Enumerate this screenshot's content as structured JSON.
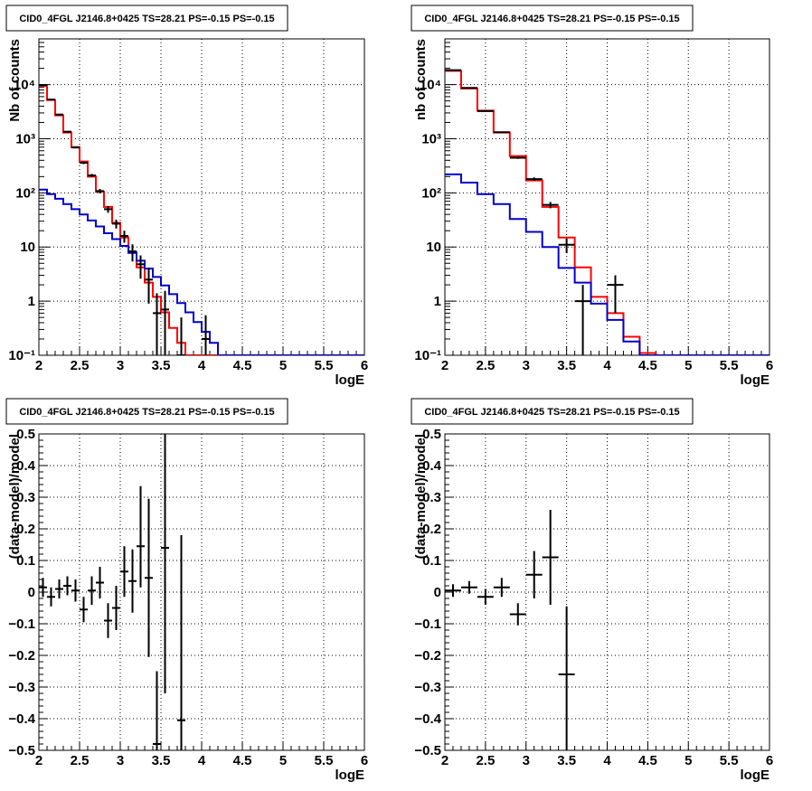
{
  "chart_data": [
    {
      "type": "histogram",
      "title": "CID0_4FGL J2146.8+0425 TS=28.21 PS=-0.15 PS=-0.15",
      "xlabel": "logE",
      "ylabel": "Nb of counts",
      "xlim": [
        2,
        6
      ],
      "ylim": [
        0.1,
        70000
      ],
      "yscale": "log",
      "grid": true,
      "xticks": [
        2,
        2.5,
        3,
        3.5,
        4,
        4.5,
        5,
        5.5,
        6
      ],
      "xtick_labels": [
        "2",
        "2.5",
        "3",
        "3.5",
        "4",
        "4.5",
        "5",
        "5.5",
        "6"
      ],
      "yticks": [
        0.1,
        1,
        10,
        100,
        1000,
        10000
      ],
      "ytick_labels": [
        "10⁻¹",
        "1",
        "10",
        "10²",
        "10³",
        "10⁴"
      ],
      "bin_edges": [
        2.0,
        2.1,
        2.2,
        2.3,
        2.4,
        2.5,
        2.6,
        2.7,
        2.8,
        2.9,
        3.0,
        3.1,
        3.2,
        3.3,
        3.4,
        3.5,
        3.6,
        3.7,
        3.8,
        3.9,
        4.0,
        4.1,
        4.2,
        4.3,
        4.4,
        4.5,
        4.6,
        4.7,
        4.8,
        4.9,
        5.0,
        5.1,
        5.2,
        5.3,
        5.4,
        5.5,
        5.6,
        5.7,
        5.8,
        5.9,
        6.0
      ],
      "series": [
        {
          "color": "#ff0000",
          "values": [
            9500,
            5200,
            2700,
            1300,
            700,
            380,
            200,
            105,
            55,
            28,
            15,
            8,
            4.2,
            2.2,
            1.2,
            0.62,
            0.32,
            0.17,
            0.1,
            0.1,
            0.1,
            0.1,
            0.1,
            0.1,
            0.1,
            0.1,
            0.1,
            0.1,
            0.1,
            0.1,
            0.1,
            0.1,
            0.1,
            0.1,
            0.1,
            0.1,
            0.1,
            0.1,
            0.1,
            0.1
          ]
        },
        {
          "color": "#0000cc",
          "values": [
            115,
            95,
            78,
            62,
            50,
            40,
            31,
            24,
            18,
            14,
            10.5,
            7.8,
            5.6,
            4.0,
            2.8,
            1.95,
            1.35,
            0.92,
            0.62,
            0.41,
            0.27,
            0.17,
            0.1,
            0.1,
            0.1,
            0.1,
            0.1,
            0.1,
            0.1,
            0.1,
            0.1,
            0.1,
            0.1,
            0.1,
            0.1,
            0.1,
            0.1,
            0.1,
            0.1,
            0.1
          ]
        }
      ],
      "points": [
        {
          "x": 2.05,
          "y": 9800,
          "yerr": [
            99,
            99
          ],
          "xerr": 0.05
        },
        {
          "x": 2.15,
          "y": 5300,
          "yerr": [
            73,
            73
          ],
          "xerr": 0.05
        },
        {
          "x": 2.25,
          "y": 2800,
          "yerr": [
            53,
            53
          ],
          "xerr": 0.05
        },
        {
          "x": 2.35,
          "y": 1350,
          "yerr": [
            37,
            37
          ],
          "xerr": 0.05
        },
        {
          "x": 2.45,
          "y": 690,
          "yerr": [
            26,
            26
          ],
          "xerr": 0.05
        },
        {
          "x": 2.55,
          "y": 360,
          "yerr": [
            19,
            19
          ],
          "xerr": 0.05
        },
        {
          "x": 2.65,
          "y": 210,
          "yerr": [
            14,
            14
          ],
          "xerr": 0.05
        },
        {
          "x": 2.75,
          "y": 108,
          "yerr": [
            10,
            10
          ],
          "xerr": 0.05
        },
        {
          "x": 2.85,
          "y": 50,
          "yerr": [
            7,
            7
          ],
          "xerr": 0.05
        },
        {
          "x": 2.95,
          "y": 27,
          "yerr": [
            5,
            5
          ],
          "xerr": 0.05
        },
        {
          "x": 3.05,
          "y": 16,
          "yerr": [
            4,
            4
          ],
          "xerr": 0.05
        },
        {
          "x": 3.15,
          "y": 8.3,
          "yerr": [
            2.9,
            2.9
          ],
          "xerr": 0.05
        },
        {
          "x": 3.25,
          "y": 4.8,
          "yerr": [
            2.2,
            2.2
          ],
          "xerr": 0.05
        },
        {
          "x": 3.35,
          "y": 2.5,
          "yerr": [
            1.6,
            1.6
          ],
          "xerr": 0.05
        },
        {
          "x": 3.45,
          "y": 0.6,
          "yerr": [
            0.6,
            0.8
          ],
          "xerr": 0.05
        },
        {
          "x": 3.55,
          "y": 0.7,
          "yerr": [
            0.7,
            0.85
          ],
          "xerr": 0.05
        },
        {
          "x": 3.75,
          "y": 0.1,
          "yerr": [
            0,
            0.4
          ],
          "xerr": 0.05
        },
        {
          "x": 4.05,
          "y": 0.2,
          "yerr": [
            0.1,
            0.35
          ],
          "xerr": 0.05
        }
      ]
    },
    {
      "type": "histogram",
      "title": "CID0_4FGL J2146.8+0425 TS=28.21 PS=-0.15 PS=-0.15",
      "xlabel": "logE",
      "ylabel": "nb of counts",
      "xlim": [
        2,
        6
      ],
      "ylim": [
        0.1,
        70000
      ],
      "yscale": "log",
      "grid": true,
      "xticks": [
        2,
        2.5,
        3,
        3.5,
        4,
        4.5,
        5,
        5.5,
        6
      ],
      "xtick_labels": [
        "2",
        "2.5",
        "3",
        "3.5",
        "4",
        "4.5",
        "5",
        "5.5",
        "6"
      ],
      "yticks": [
        0.1,
        1,
        10,
        100,
        1000,
        10000
      ],
      "ytick_labels": [
        "10⁻¹",
        "1",
        "10",
        "10²",
        "10³",
        "10⁴"
      ],
      "bin_edges": [
        2.0,
        2.2,
        2.4,
        2.6,
        2.8,
        3.0,
        3.2,
        3.4,
        3.6,
        3.8,
        4.0,
        4.2,
        4.4,
        4.6,
        4.8,
        5.0,
        5.2,
        5.4,
        5.6,
        5.8,
        6.0
      ],
      "series": [
        {
          "color": "#ff0000",
          "values": [
            18000,
            8500,
            3300,
            1300,
            480,
            170,
            55,
            15,
            4.2,
            1.2,
            0.6,
            0.22,
            0.11,
            0.1,
            0.1,
            0.1,
            0.1,
            0.1,
            0.1,
            0.1
          ]
        },
        {
          "color": "#0000cc",
          "values": [
            220,
            155,
            95,
            62,
            33,
            19,
            10,
            4.1,
            2.2,
            0.9,
            0.45,
            0.18,
            0.1,
            0.1,
            0.1,
            0.1,
            0.1,
            0.1,
            0.1,
            0.1
          ]
        }
      ],
      "points": [
        {
          "x": 2.1,
          "y": 18500,
          "yerr": [
            136,
            136
          ],
          "xerr": 0.1
        },
        {
          "x": 2.3,
          "y": 8700,
          "yerr": [
            93,
            93
          ],
          "xerr": 0.1
        },
        {
          "x": 2.5,
          "y": 3250,
          "yerr": [
            57,
            57
          ],
          "xerr": 0.1
        },
        {
          "x": 2.7,
          "y": 1320,
          "yerr": [
            36,
            36
          ],
          "xerr": 0.1
        },
        {
          "x": 2.9,
          "y": 445,
          "yerr": [
            21,
            21
          ],
          "xerr": 0.1
        },
        {
          "x": 3.1,
          "y": 180,
          "yerr": [
            13,
            13
          ],
          "xerr": 0.1
        },
        {
          "x": 3.3,
          "y": 60,
          "yerr": [
            8,
            8
          ],
          "xerr": 0.1
        },
        {
          "x": 3.5,
          "y": 11,
          "yerr": [
            3.3,
            3.3
          ],
          "xerr": 0.1
        },
        {
          "x": 3.7,
          "y": 1.0,
          "yerr": [
            0.9,
            1.0
          ],
          "xerr": 0.1
        },
        {
          "x": 4.1,
          "y": 2.0,
          "yerr": [
            1.4,
            1.0
          ],
          "xerr": 0.1
        }
      ]
    },
    {
      "type": "scatter",
      "title": "CID0_4FGL J2146.8+0425 TS=28.21 PS=-0.15 PS=-0.15",
      "xlabel": "logE",
      "ylabel": "(data-model)/model",
      "xlim": [
        2,
        6
      ],
      "ylim": [
        -0.5,
        0.5
      ],
      "grid": true,
      "xticks": [
        2,
        2.5,
        3,
        3.5,
        4,
        4.5,
        5,
        5.5,
        6
      ],
      "xtick_labels": [
        "2",
        "2.5",
        "3",
        "3.5",
        "4",
        "4.5",
        "5",
        "5.5",
        "6"
      ],
      "yticks": [
        -0.5,
        -0.4,
        -0.3,
        -0.2,
        -0.1,
        0,
        0.1,
        0.2,
        0.3,
        0.4,
        0.5
      ],
      "ytick_labels": [
        "−0.5",
        "−0.4",
        "−0.3",
        "−0.2",
        "−0.1",
        "0",
        "0.1",
        "0.2",
        "0.3",
        "0.4",
        "0.5"
      ],
      "points": [
        {
          "x": 2.05,
          "y": 0.015,
          "yerr": [
            0.03,
            0.03
          ],
          "xerr": 0.05
        },
        {
          "x": 2.15,
          "y": -0.015,
          "yerr": [
            0.03,
            0.03
          ],
          "xerr": 0.05
        },
        {
          "x": 2.25,
          "y": 0.01,
          "yerr": [
            0.03,
            0.03
          ],
          "xerr": 0.05
        },
        {
          "x": 2.35,
          "y": 0.02,
          "yerr": [
            0.03,
            0.03
          ],
          "xerr": 0.05
        },
        {
          "x": 2.45,
          "y": 0.005,
          "yerr": [
            0.035,
            0.035
          ],
          "xerr": 0.05
        },
        {
          "x": 2.55,
          "y": -0.055,
          "yerr": [
            0.04,
            0.04
          ],
          "xerr": 0.05
        },
        {
          "x": 2.65,
          "y": 0.005,
          "yerr": [
            0.045,
            0.045
          ],
          "xerr": 0.05
        },
        {
          "x": 2.75,
          "y": 0.03,
          "yerr": [
            0.05,
            0.05
          ],
          "xerr": 0.05
        },
        {
          "x": 2.85,
          "y": -0.09,
          "yerr": [
            0.055,
            0.055
          ],
          "xerr": 0.05
        },
        {
          "x": 2.95,
          "y": -0.05,
          "yerr": [
            0.07,
            0.07
          ],
          "xerr": 0.05
        },
        {
          "x": 3.05,
          "y": 0.065,
          "yerr": [
            0.08,
            0.08
          ],
          "xerr": 0.05
        },
        {
          "x": 3.15,
          "y": 0.035,
          "yerr": [
            0.1,
            0.1
          ],
          "xerr": 0.05
        },
        {
          "x": 3.25,
          "y": 0.145,
          "yerr": [
            0.13,
            0.19
          ],
          "xerr": 0.05
        },
        {
          "x": 3.35,
          "y": 0.045,
          "yerr": [
            0.25,
            0.25
          ],
          "xerr": 0.05
        },
        {
          "x": 3.45,
          "y": -0.48,
          "yerr": [
            0.02,
            0.23
          ],
          "xerr": 0.05
        },
        {
          "x": 3.55,
          "y": 0.14,
          "yerr": [
            0.46,
            0.36
          ],
          "xerr": 0.05
        },
        {
          "x": 3.75,
          "y": -0.405,
          "yerr": [
            0.095,
            0.585
          ],
          "xerr": 0.05
        }
      ]
    },
    {
      "type": "scatter",
      "title": "CID0_4FGL J2146.8+0425 TS=28.21 PS=-0.15 PS=-0.15",
      "xlabel": "logE",
      "ylabel": "(data-model)/model",
      "xlim": [
        2,
        6
      ],
      "ylim": [
        -0.5,
        0.5
      ],
      "grid": true,
      "xticks": [
        2,
        2.5,
        3,
        3.5,
        4,
        4.5,
        5,
        5.5,
        6
      ],
      "xtick_labels": [
        "2",
        "2.5",
        "3",
        "3.5",
        "4",
        "4.5",
        "5",
        "5.5",
        "6"
      ],
      "yticks": [
        -0.5,
        -0.4,
        -0.3,
        -0.2,
        -0.1,
        0,
        0.1,
        0.2,
        0.3,
        0.4,
        0.5
      ],
      "ytick_labels": [
        "−0.5",
        "−0.4",
        "−0.3",
        "−0.2",
        "−0.1",
        "0",
        "0.1",
        "0.2",
        "0.3",
        "0.4",
        "0.5"
      ],
      "points": [
        {
          "x": 2.1,
          "y": 0.005,
          "yerr": [
            0.02,
            0.02
          ],
          "xerr": 0.1
        },
        {
          "x": 2.3,
          "y": 0.015,
          "yerr": [
            0.02,
            0.02
          ],
          "xerr": 0.1
        },
        {
          "x": 2.5,
          "y": -0.015,
          "yerr": [
            0.025,
            0.025
          ],
          "xerr": 0.1
        },
        {
          "x": 2.7,
          "y": 0.015,
          "yerr": [
            0.03,
            0.03
          ],
          "xerr": 0.1
        },
        {
          "x": 2.9,
          "y": -0.07,
          "yerr": [
            0.035,
            0.035
          ],
          "xerr": 0.1
        },
        {
          "x": 3.1,
          "y": 0.055,
          "yerr": [
            0.075,
            0.075
          ],
          "xerr": 0.1
        },
        {
          "x": 3.3,
          "y": 0.11,
          "yerr": [
            0.15,
            0.15
          ],
          "xerr": 0.1
        },
        {
          "x": 3.5,
          "y": -0.26,
          "yerr": [
            0.24,
            0.215
          ],
          "xerr": 0.1
        }
      ]
    }
  ]
}
